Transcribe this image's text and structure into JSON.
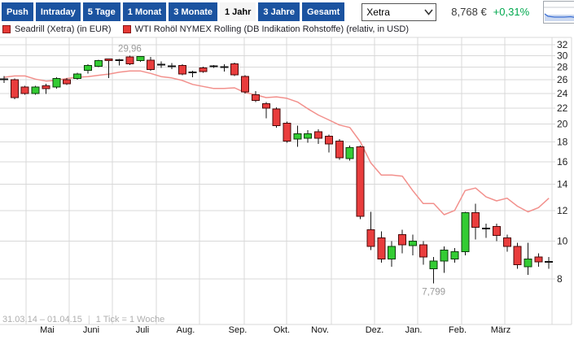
{
  "toolbar": {
    "buttons": [
      {
        "label": "Push",
        "active": false
      },
      {
        "label": "Intraday",
        "active": false
      },
      {
        "label": "5 Tage",
        "active": false
      },
      {
        "label": "1 Monat",
        "active": false
      },
      {
        "label": "3 Monate",
        "active": false
      },
      {
        "label": "1 Jahr",
        "active": true
      },
      {
        "label": "3 Jahre",
        "active": false
      },
      {
        "label": "Gesamt",
        "active": false
      }
    ],
    "exchange": {
      "value": "Xetra",
      "options": [
        "Xetra"
      ]
    },
    "price": "8,768 €",
    "change": "+0,31%"
  },
  "legend": [
    {
      "label": "Seadrill (Xetra) (in EUR)",
      "swatch_color": "#e53935"
    },
    {
      "label": "WTI Rohöl NYMEX Rolling (DB Indikation Rohstoffe) (relativ, in USD)",
      "swatch_color": "#e53935"
    }
  ],
  "footer": {
    "date_range": "31.03.14 – 01.04.15",
    "separator": "|",
    "tick_info": "1 Tick = 1 Woche"
  },
  "chart_data": {
    "type": "candlestick+line",
    "title": "Seadrill 1 Jahr Wochenchart mit WTI Rohöl relativ",
    "y_axis": {
      "scale": "log",
      "ticks": [
        32,
        30,
        28,
        26,
        24,
        22,
        20,
        18,
        16,
        14,
        12,
        10,
        8
      ],
      "range": [
        7.5,
        33
      ]
    },
    "x_axis": {
      "months": [
        {
          "label": "Mai",
          "x": 58
        },
        {
          "label": "Juni",
          "x": 112
        },
        {
          "label": "Juli",
          "x": 175
        },
        {
          "label": "Aug.",
          "x": 228
        },
        {
          "label": "Sep.",
          "x": 292
        },
        {
          "label": "Okt.",
          "x": 346
        },
        {
          "label": "Nov.",
          "x": 393
        },
        {
          "label": "Dez.",
          "x": 460
        },
        {
          "label": "Jan.",
          "x": 508
        },
        {
          "label": "Feb.",
          "x": 562
        },
        {
          "label": "März",
          "x": 615
        }
      ],
      "gridlines": [
        32,
        85,
        138,
        192,
        245,
        300,
        352,
        407,
        460,
        513,
        567,
        620
      ]
    },
    "annotations": [
      {
        "text": "29,96",
        "week": 12,
        "placement": "above"
      },
      {
        "text": "7,799",
        "week": 41,
        "placement": "below"
      }
    ],
    "series": [
      {
        "name": "Seadrill (Xetra) (in EUR)",
        "type": "candlestick",
        "ohlc": [
          [
            26.1,
            26.6,
            25.5,
            26.0
          ],
          [
            26.0,
            26.2,
            23.2,
            23.4
          ],
          [
            24.9,
            25.1,
            23.8,
            24.0
          ],
          [
            24.0,
            25.1,
            23.8,
            24.9
          ],
          [
            25.1,
            25.4,
            23.9,
            24.7
          ],
          [
            24.9,
            26.4,
            24.7,
            26.2
          ],
          [
            26.0,
            26.3,
            25.2,
            25.4
          ],
          [
            26.2,
            27.1,
            26.0,
            26.9
          ],
          [
            27.5,
            28.5,
            27.0,
            28.3
          ],
          [
            28.2,
            29.3,
            28.0,
            29.1
          ],
          [
            29.4,
            29.5,
            26.3,
            29.1
          ],
          [
            29.2,
            29.4,
            28.3,
            29.2
          ],
          [
            29.8,
            29.96,
            28.4,
            28.6
          ],
          [
            29.1,
            29.9,
            28.9,
            29.85
          ],
          [
            29.2,
            29.8,
            27.4,
            27.6
          ],
          [
            28.5,
            29.0,
            27.9,
            28.4
          ],
          [
            28.2,
            28.7,
            27.7,
            28.1
          ],
          [
            28.3,
            28.5,
            26.7,
            26.9
          ],
          [
            27.2,
            27.4,
            26.4,
            27.2
          ],
          [
            27.9,
            28.1,
            27.1,
            27.3
          ],
          [
            28.2,
            28.4,
            27.9,
            28.2
          ],
          [
            28.0,
            28.5,
            27.3,
            28.0
          ],
          [
            28.6,
            28.8,
            26.6,
            26.8
          ],
          [
            26.5,
            26.7,
            24.0,
            24.2
          ],
          [
            23.8,
            24.3,
            22.8,
            23.0
          ],
          [
            22.6,
            22.8,
            20.7,
            22.0
          ],
          [
            21.9,
            22.1,
            19.6,
            19.8
          ],
          [
            20.1,
            20.3,
            17.9,
            18.1
          ],
          [
            18.3,
            19.8,
            17.5,
            18.9
          ],
          [
            18.4,
            19.3,
            17.9,
            18.9
          ],
          [
            19.1,
            19.4,
            17.8,
            18.4
          ],
          [
            18.6,
            18.8,
            16.9,
            17.8
          ],
          [
            18.1,
            18.3,
            16.2,
            16.4
          ],
          [
            16.3,
            17.6,
            16.1,
            17.4
          ],
          [
            17.5,
            17.6,
            11.4,
            11.6
          ],
          [
            10.7,
            11.9,
            9.5,
            9.7
          ],
          [
            10.2,
            10.6,
            8.8,
            9.0
          ],
          [
            9.0,
            10.0,
            8.6,
            9.7
          ],
          [
            10.4,
            10.7,
            9.3,
            9.8
          ],
          [
            9.75,
            10.4,
            9.2,
            10.0
          ],
          [
            9.8,
            10.0,
            8.7,
            9.1
          ],
          [
            8.5,
            9.1,
            7.799,
            8.9
          ],
          [
            8.9,
            9.7,
            8.3,
            9.5
          ],
          [
            9.0,
            9.6,
            8.8,
            9.4
          ],
          [
            9.4,
            11.9,
            9.2,
            11.85
          ],
          [
            11.85,
            12.5,
            10.1,
            10.85
          ],
          [
            10.8,
            11.1,
            10.2,
            10.75
          ],
          [
            10.9,
            11.1,
            10.0,
            10.35
          ],
          [
            10.2,
            10.4,
            9.4,
            9.7
          ],
          [
            9.7,
            9.9,
            8.5,
            8.7
          ],
          [
            8.6,
            9.9,
            8.2,
            9.0
          ],
          [
            9.1,
            9.3,
            8.6,
            8.85
          ],
          [
            8.85,
            9.1,
            8.5,
            8.85
          ]
        ]
      },
      {
        "name": "WTI Rohöl NYMEX Rolling (relativ)",
        "type": "line",
        "values": [
          26.4,
          26.6,
          26.6,
          26.1,
          25.8,
          25.9,
          26.2,
          26.4,
          26.5,
          26.7,
          26.9,
          27.2,
          27.4,
          27.4,
          27.0,
          26.5,
          26.3,
          25.9,
          25.3,
          25.0,
          24.7,
          24.7,
          24.8,
          24.1,
          23.8,
          23.4,
          23.5,
          23.3,
          22.8,
          21.9,
          21.1,
          20.5,
          19.9,
          19.6,
          18.0,
          15.9,
          14.8,
          14.8,
          14.7,
          13.5,
          12.5,
          12.5,
          11.7,
          12.0,
          13.5,
          13.7,
          13.0,
          12.7,
          12.9,
          12.3,
          11.9,
          12.2,
          12.9
        ]
      }
    ],
    "geom": {
      "x0": 5,
      "dx": 12.87,
      "y16": 199,
      "octave": 144,
      "top": 46,
      "bottom": 399,
      "plot_right": 678,
      "frame_right": 702,
      "axis_x": 684,
      "month_y": 409
    },
    "colors": {
      "up_fill": "#33cc33",
      "up_border": "#0c3d0c",
      "down_fill": "#e93d3d",
      "down_border": "#4a0b0b",
      "wick": "#141414",
      "wti_line": "#f2908c",
      "grid": "#d8d8d8",
      "annotation": "#9b9b9b",
      "axis_text": "#222222",
      "month_text": "#111111",
      "positive": "#00a84e",
      "button_bg": "#1b53a0",
      "button_active_bg": "#f5f5f5"
    }
  }
}
